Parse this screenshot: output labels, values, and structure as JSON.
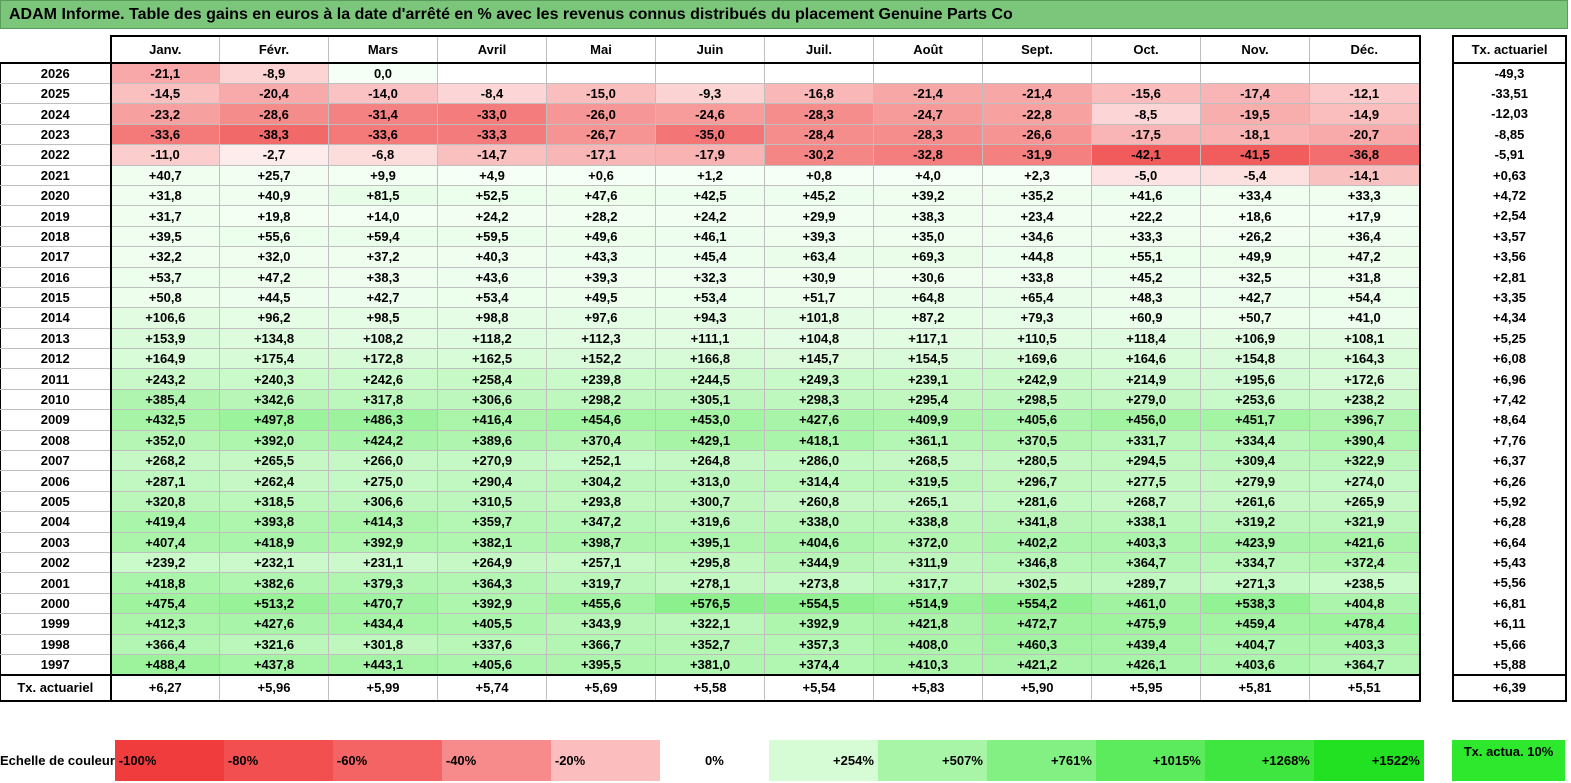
{
  "title": "ADAM Informe. Table des gains en euros à la date d'arrêté en % avec les revenus connus distribués du placement Genuine Parts Co",
  "months": [
    "Janv.",
    "Févr.",
    "Mars",
    "Avril",
    "Mai",
    "Juin",
    "Juil.",
    "Août",
    "Sept.",
    "Oct.",
    "Nov.",
    "Déc."
  ],
  "side_header": "Tx. actuariel",
  "rows": [
    {
      "year": "2026",
      "values": [
        "-21,1",
        "-8,9",
        "0,0",
        "",
        "",
        "",
        "",
        "",
        "",
        "",
        "",
        ""
      ],
      "rate": "-49,3"
    },
    {
      "year": "2025",
      "values": [
        "-14,5",
        "-20,4",
        "-14,0",
        "-8,4",
        "-15,0",
        "-9,3",
        "-16,8",
        "-21,4",
        "-21,4",
        "-15,6",
        "-17,4",
        "-12,1"
      ],
      "rate": "-33,51"
    },
    {
      "year": "2024",
      "values": [
        "-23,2",
        "-28,6",
        "-31,4",
        "-33,0",
        "-26,0",
        "-24,6",
        "-28,3",
        "-24,7",
        "-22,8",
        "-8,5",
        "-19,5",
        "-14,9"
      ],
      "rate": "-12,03"
    },
    {
      "year": "2023",
      "values": [
        "-33,6",
        "-38,3",
        "-33,6",
        "-33,3",
        "-26,7",
        "-35,0",
        "-28,4",
        "-28,3",
        "-26,6",
        "-17,5",
        "-18,1",
        "-20,7"
      ],
      "rate": "-8,85"
    },
    {
      "year": "2022",
      "values": [
        "-11,0",
        "-2,7",
        "-6,8",
        "-14,7",
        "-17,1",
        "-17,9",
        "-30,2",
        "-32,8",
        "-31,9",
        "-42,1",
        "-41,5",
        "-36,8"
      ],
      "rate": "-5,91"
    },
    {
      "year": "2021",
      "values": [
        "+40,7",
        "+25,7",
        "+9,9",
        "+4,9",
        "+0,6",
        "+1,2",
        "+0,8",
        "+4,0",
        "+2,3",
        "-5,0",
        "-5,4",
        "-14,1"
      ],
      "rate": "+0,63"
    },
    {
      "year": "2020",
      "values": [
        "+31,8",
        "+40,9",
        "+81,5",
        "+52,5",
        "+47,6",
        "+42,5",
        "+45,2",
        "+39,2",
        "+35,2",
        "+41,6",
        "+33,4",
        "+33,3"
      ],
      "rate": "+4,72"
    },
    {
      "year": "2019",
      "values": [
        "+31,7",
        "+19,8",
        "+14,0",
        "+24,2",
        "+28,2",
        "+24,2",
        "+29,9",
        "+38,3",
        "+23,4",
        "+22,2",
        "+18,6",
        "+17,9"
      ],
      "rate": "+2,54"
    },
    {
      "year": "2018",
      "values": [
        "+39,5",
        "+55,6",
        "+59,4",
        "+59,5",
        "+49,6",
        "+46,1",
        "+39,3",
        "+35,0",
        "+34,6",
        "+33,3",
        "+26,2",
        "+36,4"
      ],
      "rate": "+3,57"
    },
    {
      "year": "2017",
      "values": [
        "+32,2",
        "+32,0",
        "+37,2",
        "+40,3",
        "+43,3",
        "+45,4",
        "+63,4",
        "+69,3",
        "+44,8",
        "+55,1",
        "+49,9",
        "+47,2"
      ],
      "rate": "+3,56"
    },
    {
      "year": "2016",
      "values": [
        "+53,7",
        "+47,2",
        "+38,3",
        "+43,6",
        "+39,3",
        "+32,3",
        "+30,9",
        "+30,6",
        "+33,8",
        "+45,2",
        "+32,5",
        "+31,8"
      ],
      "rate": "+2,81"
    },
    {
      "year": "2015",
      "values": [
        "+50,8",
        "+44,5",
        "+42,7",
        "+53,4",
        "+49,5",
        "+53,4",
        "+51,7",
        "+64,8",
        "+65,4",
        "+48,3",
        "+42,7",
        "+54,4"
      ],
      "rate": "+3,35"
    },
    {
      "year": "2014",
      "values": [
        "+106,6",
        "+96,2",
        "+98,5",
        "+98,8",
        "+97,6",
        "+94,3",
        "+101,8",
        "+87,2",
        "+79,3",
        "+60,9",
        "+50,7",
        "+41,0"
      ],
      "rate": "+4,34"
    },
    {
      "year": "2013",
      "values": [
        "+153,9",
        "+134,8",
        "+108,2",
        "+118,2",
        "+112,3",
        "+111,1",
        "+104,8",
        "+117,1",
        "+110,5",
        "+118,4",
        "+106,9",
        "+108,1"
      ],
      "rate": "+5,25"
    },
    {
      "year": "2012",
      "values": [
        "+164,9",
        "+175,4",
        "+172,8",
        "+162,5",
        "+152,2",
        "+166,8",
        "+145,7",
        "+154,5",
        "+169,6",
        "+164,6",
        "+154,8",
        "+164,3"
      ],
      "rate": "+6,08"
    },
    {
      "year": "2011",
      "values": [
        "+243,2",
        "+240,3",
        "+242,6",
        "+258,4",
        "+239,8",
        "+244,5",
        "+249,3",
        "+239,1",
        "+242,9",
        "+214,9",
        "+195,6",
        "+172,6"
      ],
      "rate": "+6,96"
    },
    {
      "year": "2010",
      "values": [
        "+385,4",
        "+342,6",
        "+317,8",
        "+306,6",
        "+298,2",
        "+305,1",
        "+298,3",
        "+295,4",
        "+298,5",
        "+279,0",
        "+253,6",
        "+238,2"
      ],
      "rate": "+7,42"
    },
    {
      "year": "2009",
      "values": [
        "+432,5",
        "+497,8",
        "+486,3",
        "+416,4",
        "+454,6",
        "+453,0",
        "+427,6",
        "+409,9",
        "+405,6",
        "+456,0",
        "+451,7",
        "+396,7"
      ],
      "rate": "+8,64"
    },
    {
      "year": "2008",
      "values": [
        "+352,0",
        "+392,0",
        "+424,2",
        "+389,6",
        "+370,4",
        "+429,1",
        "+418,1",
        "+361,1",
        "+370,5",
        "+331,7",
        "+334,4",
        "+390,4"
      ],
      "rate": "+7,76"
    },
    {
      "year": "2007",
      "values": [
        "+268,2",
        "+265,5",
        "+266,0",
        "+270,9",
        "+252,1",
        "+264,8",
        "+286,0",
        "+268,5",
        "+280,5",
        "+294,5",
        "+309,4",
        "+322,9"
      ],
      "rate": "+6,37"
    },
    {
      "year": "2006",
      "values": [
        "+287,1",
        "+262,4",
        "+275,0",
        "+290,4",
        "+304,2",
        "+313,0",
        "+314,4",
        "+319,5",
        "+296,7",
        "+277,5",
        "+279,9",
        "+274,0"
      ],
      "rate": "+6,26"
    },
    {
      "year": "2005",
      "values": [
        "+320,8",
        "+318,5",
        "+306,6",
        "+310,5",
        "+293,8",
        "+300,7",
        "+260,8",
        "+265,1",
        "+281,6",
        "+268,7",
        "+261,6",
        "+265,9"
      ],
      "rate": "+5,92"
    },
    {
      "year": "2004",
      "values": [
        "+419,4",
        "+393,8",
        "+414,3",
        "+359,7",
        "+347,2",
        "+319,6",
        "+338,0",
        "+338,8",
        "+341,8",
        "+338,1",
        "+319,2",
        "+321,9"
      ],
      "rate": "+6,28"
    },
    {
      "year": "2003",
      "values": [
        "+407,4",
        "+418,9",
        "+392,9",
        "+382,1",
        "+398,7",
        "+395,1",
        "+404,6",
        "+372,0",
        "+402,2",
        "+403,3",
        "+423,9",
        "+421,6"
      ],
      "rate": "+6,64"
    },
    {
      "year": "2002",
      "values": [
        "+239,2",
        "+232,1",
        "+231,1",
        "+264,9",
        "+257,1",
        "+295,8",
        "+344,9",
        "+311,9",
        "+346,8",
        "+364,7",
        "+334,7",
        "+372,4"
      ],
      "rate": "+5,43"
    },
    {
      "year": "2001",
      "values": [
        "+418,8",
        "+382,6",
        "+379,3",
        "+364,3",
        "+319,7",
        "+278,1",
        "+273,8",
        "+317,7",
        "+302,5",
        "+289,7",
        "+271,3",
        "+238,5"
      ],
      "rate": "+5,56"
    },
    {
      "year": "2000",
      "values": [
        "+475,4",
        "+513,2",
        "+470,7",
        "+392,9",
        "+455,6",
        "+576,5",
        "+554,5",
        "+514,9",
        "+554,2",
        "+461,0",
        "+538,3",
        "+404,8"
      ],
      "rate": "+6,81"
    },
    {
      "year": "1999",
      "values": [
        "+412,3",
        "+427,6",
        "+434,4",
        "+405,5",
        "+343,9",
        "+322,1",
        "+392,9",
        "+421,8",
        "+472,7",
        "+475,9",
        "+459,4",
        "+478,4"
      ],
      "rate": "+6,11"
    },
    {
      "year": "1998",
      "values": [
        "+366,4",
        "+321,6",
        "+301,8",
        "+337,6",
        "+366,7",
        "+352,7",
        "+357,3",
        "+408,0",
        "+460,3",
        "+439,4",
        "+404,7",
        "+403,3"
      ],
      "rate": "+5,66"
    },
    {
      "year": "1997",
      "values": [
        "+488,4",
        "+437,8",
        "+443,1",
        "+405,6",
        "+395,5",
        "+381,0",
        "+374,4",
        "+410,3",
        "+421,2",
        "+426,1",
        "+403,6",
        "+364,7"
      ],
      "rate": "+5,88"
    }
  ],
  "summary": {
    "label": "Tx. actuariel",
    "values": [
      "+6,27",
      "+5,96",
      "+5,99",
      "+5,74",
      "+5,69",
      "+5,58",
      "+5,54",
      "+5,83",
      "+5,90",
      "+5,95",
      "+5,81",
      "+5,51"
    ],
    "rate": "+6,39"
  },
  "scale": {
    "label": "Echelle de couleur",
    "items": [
      {
        "text": "-100%",
        "color": "#f03c3c"
      },
      {
        "text": "-80%",
        "color": "#f25050"
      },
      {
        "text": "-60%",
        "color": "#f46464"
      },
      {
        "text": "-40%",
        "color": "#f78a8a"
      },
      {
        "text": "-20%",
        "color": "#fbbdbd"
      },
      {
        "text": "0%",
        "color": "#ffffff"
      },
      {
        "text": "+254%",
        "color": "#d5fcd5"
      },
      {
        "text": "+507%",
        "color": "#a8f5a8"
      },
      {
        "text": "+761%",
        "color": "#82f082"
      },
      {
        "text": "+1015%",
        "color": "#5ceb5c"
      },
      {
        "text": "+1268%",
        "color": "#3fe63f"
      },
      {
        "text": "+1522%",
        "color": "#22e022"
      }
    ],
    "side_label": "Tx. actua. 10%",
    "side_color": "#2ee82e"
  }
}
